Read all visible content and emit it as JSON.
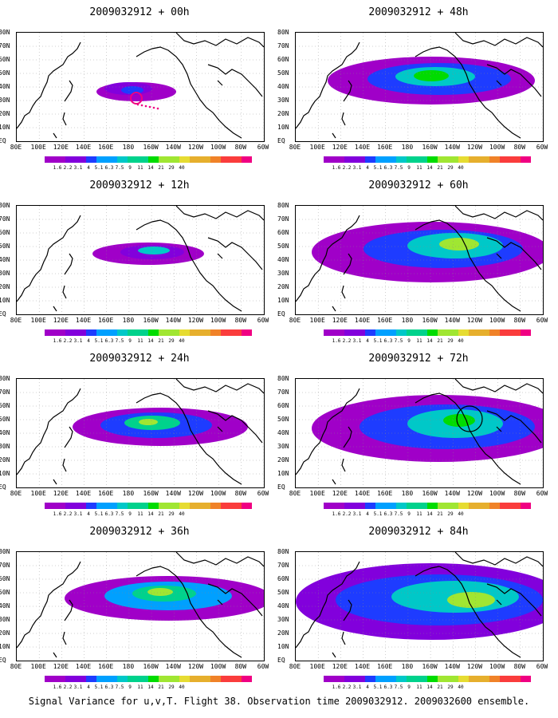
{
  "panels": [
    {
      "title": "2009032912 + 00h",
      "intensity": 0.25
    },
    {
      "title": "2009032912 + 48h",
      "intensity": 0.7
    },
    {
      "title": "2009032912 + 12h",
      "intensity": 0.35
    },
    {
      "title": "2009032912 + 60h",
      "intensity": 0.8
    },
    {
      "title": "2009032912 + 24h",
      "intensity": 0.5
    },
    {
      "title": "2009032912 + 72h",
      "intensity": 0.85
    },
    {
      "title": "2009032912 + 36h",
      "intensity": 0.6
    },
    {
      "title": "2009032912 + 84h",
      "intensity": 0.95
    }
  ],
  "y_tick_labels": [
    "80N",
    "70N",
    "60N",
    "50N",
    "40N",
    "30N",
    "20N",
    "10N",
    "EQ"
  ],
  "x_tick_labels": [
    "80E",
    "100E",
    "120E",
    "140E",
    "160E",
    "180",
    "160W",
    "140W",
    "120W",
    "100W",
    "80W",
    "60W"
  ],
  "colorbar": {
    "labels": [
      "1.6",
      "2.2",
      "3.1",
      "4",
      "5.1",
      "6.3",
      "7.5",
      "9",
      "11",
      "14",
      "21",
      "29",
      "40"
    ],
    "colors": [
      "#a000c8",
      "#8200dc",
      "#1e3cff",
      "#00a0ff",
      "#00c8c8",
      "#00d28c",
      "#00dc00",
      "#a0e632",
      "#e6dc32",
      "#e6af2d",
      "#f08228",
      "#fa3c3c",
      "#f00082"
    ]
  },
  "caption": "Signal Variance for u,v,T. Flight 38. Observation time 2009032912. 2009032600 ensemble.",
  "chart_data": {
    "type": "heatmap",
    "title": "Signal Variance for u,v,T. Flight 38. Observation time 2009032912. 2009032600 ensemble.",
    "lead_times": [
      "00h",
      "12h",
      "24h",
      "36h",
      "48h",
      "60h",
      "72h",
      "84h"
    ],
    "x_range": [
      "80E",
      "60W"
    ],
    "y_range": [
      "EQ",
      "80N"
    ],
    "color_levels": [
      1.6,
      2.2,
      3.1,
      4,
      5.1,
      6.3,
      7.5,
      9,
      11,
      14,
      21,
      29,
      40
    ]
  }
}
